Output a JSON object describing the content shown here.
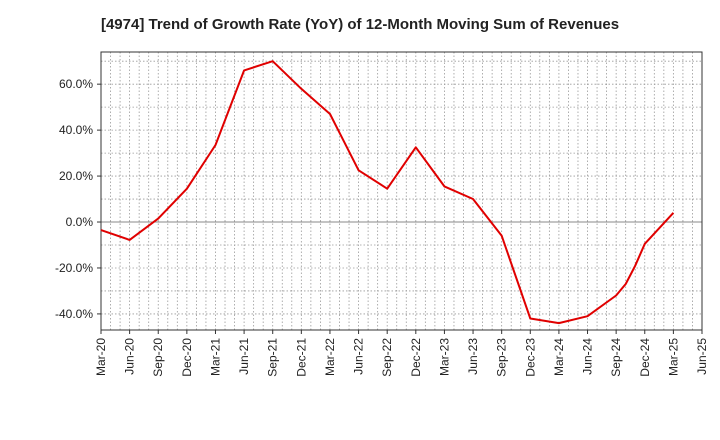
{
  "chart_data": {
    "type": "line",
    "title": "[4974]  Trend of Growth Rate (YoY) of 12-Month Moving Sum of Revenues",
    "xlabel": "",
    "ylabel": "",
    "grid": true,
    "ylim": [
      -47,
      74
    ],
    "y_ticks": [
      "60.0%",
      "40.0%",
      "20.0%",
      "0.0%",
      "-20.0%",
      "-40.0%"
    ],
    "y_tick_values": [
      60,
      40,
      20,
      0,
      -20,
      -40
    ],
    "x_tick_labels": [
      "Mar-20",
      "Jun-20",
      "Sep-20",
      "Dec-20",
      "Mar-21",
      "Jun-21",
      "Sep-21",
      "Dec-21",
      "Mar-22",
      "Jun-22",
      "Sep-22",
      "Dec-22",
      "Mar-23",
      "Jun-23",
      "Sep-23",
      "Dec-23",
      "Mar-24",
      "Jun-24",
      "Sep-24",
      "Dec-24",
      "Mar-25",
      "Jun-25"
    ],
    "x_minor_per_major": 3,
    "series": [
      {
        "color": "#e00000",
        "points": [
          {
            "x": 0,
            "y": -3.5
          },
          {
            "x": 3,
            "y": -7.8
          },
          {
            "x": 6,
            "y": 1.5
          },
          {
            "x": 9,
            "y": 14.5
          },
          {
            "x": 12,
            "y": 33.5
          },
          {
            "x": 15,
            "y": 66.0
          },
          {
            "x": 18,
            "y": 70.0
          },
          {
            "x": 21,
            "y": 58.0
          },
          {
            "x": 24,
            "y": 47.0
          },
          {
            "x": 27,
            "y": 22.5
          },
          {
            "x": 30,
            "y": 14.5
          },
          {
            "x": 33,
            "y": 32.5
          },
          {
            "x": 36,
            "y": 15.5
          },
          {
            "x": 39,
            "y": 10.0
          },
          {
            "x": 42,
            "y": -6.0
          },
          {
            "x": 45,
            "y": -42.0
          },
          {
            "x": 48,
            "y": -44.0
          },
          {
            "x": 51,
            "y": -41.0
          },
          {
            "x": 54,
            "y": -32.0
          },
          {
            "x": 55,
            "y": -27.0
          },
          {
            "x": 56,
            "y": -19.0
          },
          {
            "x": 57,
            "y": -9.5
          },
          {
            "x": 60,
            "y": 4.0
          }
        ]
      }
    ]
  }
}
